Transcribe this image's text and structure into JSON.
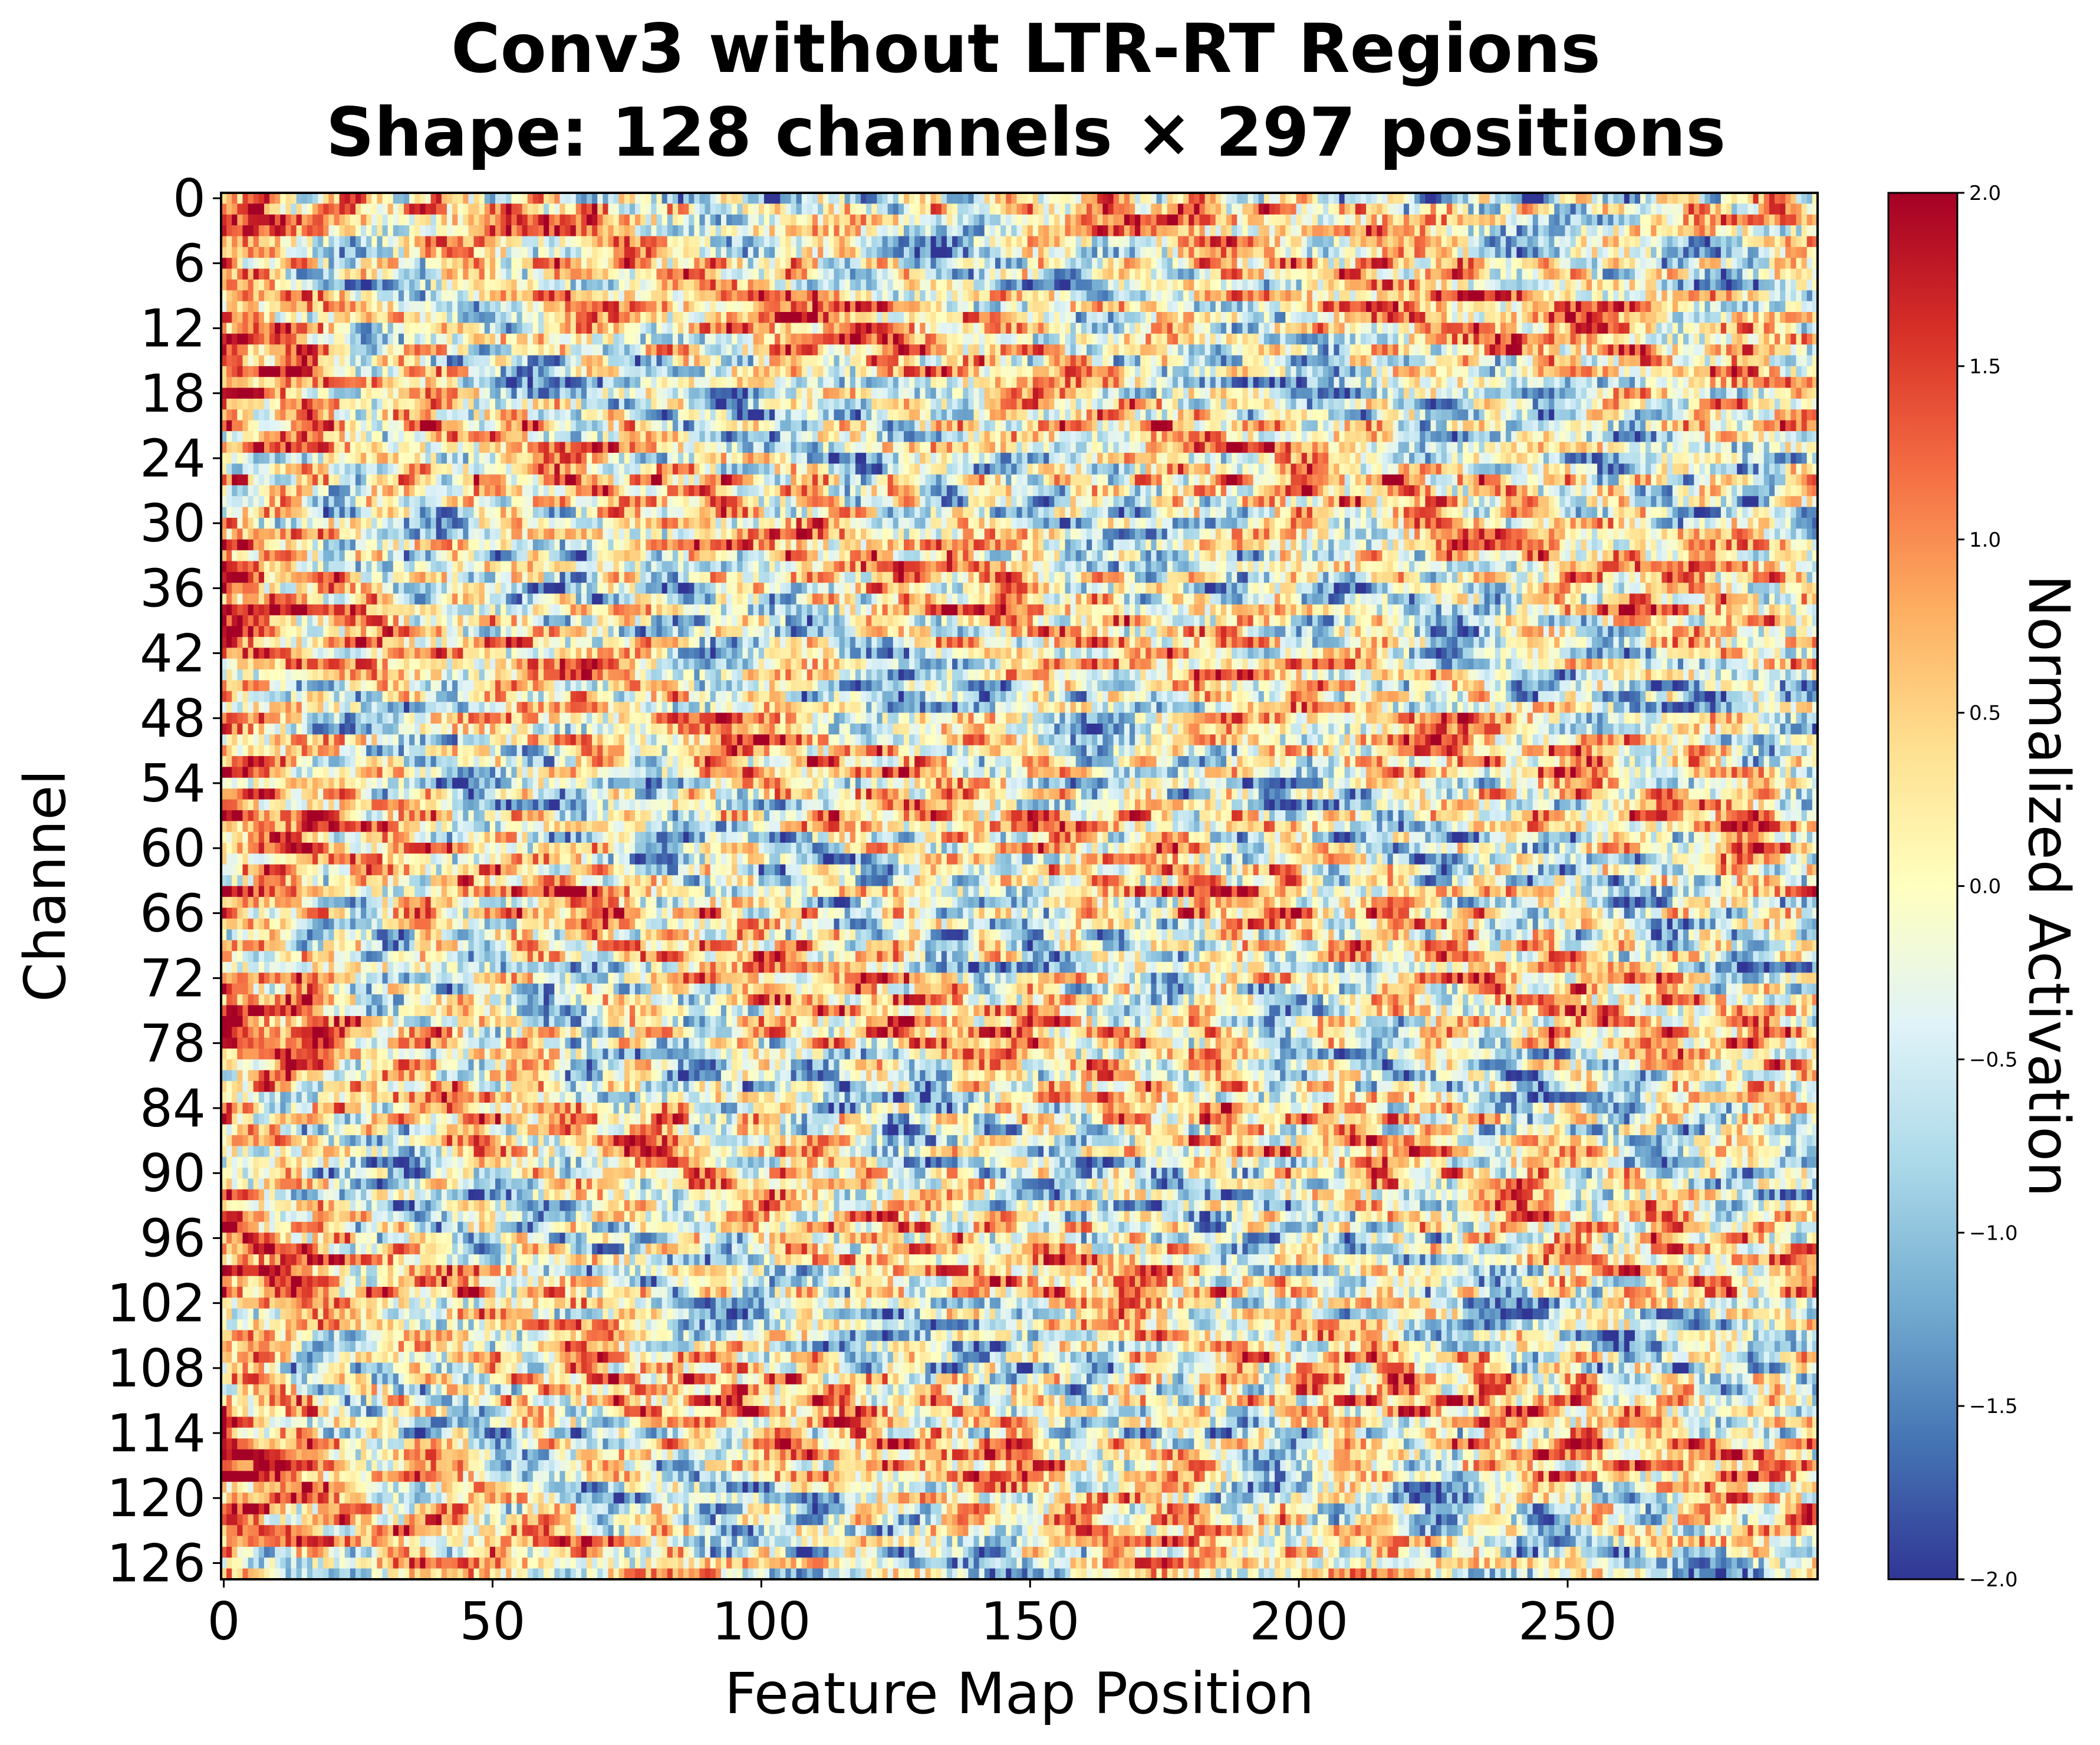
{
  "chart_data": {
    "type": "heatmap",
    "title_lines": [
      "Conv3 without LTR-RT Regions",
      "Shape: 128 channels × 297 positions"
    ],
    "xlabel": "Feature Map Position",
    "ylabel": "Channel",
    "n_rows": 128,
    "n_cols": 297,
    "xlim": [
      0,
      297
    ],
    "ylim": [
      0,
      128
    ],
    "x_ticks": [
      0,
      50,
      100,
      150,
      200,
      250
    ],
    "y_ticks": [
      0,
      6,
      12,
      18,
      24,
      30,
      36,
      42,
      48,
      54,
      60,
      66,
      72,
      78,
      84,
      90,
      96,
      102,
      108,
      114,
      120,
      126
    ],
    "colormap": "RdYlBu_r",
    "colormap_stops": [
      "#313695",
      "#4575b4",
      "#74add1",
      "#abd9e9",
      "#e0f3f8",
      "#ffffbf",
      "#fee090",
      "#fdae61",
      "#f46d43",
      "#d73027",
      "#a50026"
    ],
    "colorbar": {
      "label": "Normalized Activation",
      "range": [
        -2.0,
        2.0
      ],
      "ticks": [
        "2.0",
        "1.5",
        "1.0",
        "0.5",
        "0.0",
        "−0.5",
        "−1.0",
        "−1.5",
        "−2.0"
      ],
      "tick_values": [
        2.0,
        1.5,
        1.0,
        0.5,
        0.0,
        -0.5,
        -1.0,
        -1.5,
        -2.0
      ]
    }
  }
}
